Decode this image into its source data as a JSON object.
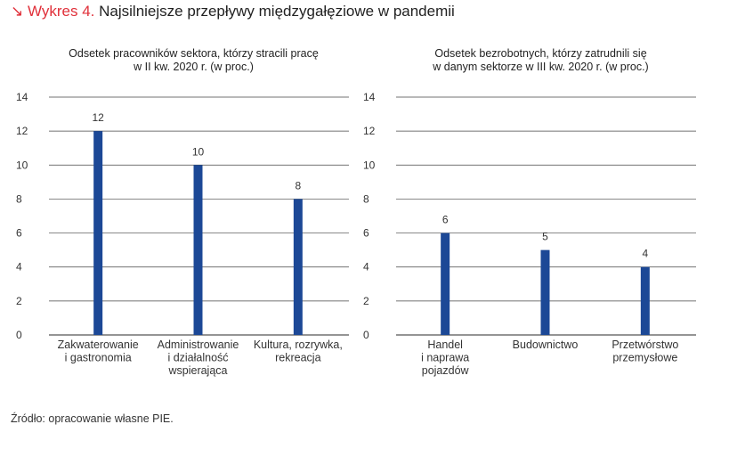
{
  "header": {
    "arrow": "↘",
    "number": "Wykres 4.",
    "title": "Najsilniejsze przepływy międzygałęziowe w pandemii"
  },
  "source": "Źródło: opracowanie własne PIE.",
  "colors": {
    "bar": "#1c4896",
    "grid": "#333333",
    "accent": "#e0303a"
  },
  "chart_data": [
    {
      "type": "bar",
      "title": [
        "Odsetek pracowników sektora, którzy stracili pracę",
        "w II kw. 2020 r. (w proc.)"
      ],
      "categories": [
        [
          "Zakwaterowanie",
          "i gastronomia"
        ],
        [
          "Administrowanie",
          "i działalność",
          "wspierająca"
        ],
        [
          "Kultura, rozrywka,",
          "rekreacja"
        ]
      ],
      "values": [
        12,
        10,
        8
      ],
      "ylim": [
        0,
        14
      ],
      "yticks": [
        0,
        2,
        4,
        6,
        8,
        10,
        12,
        14
      ],
      "grid": true
    },
    {
      "type": "bar",
      "title": [
        "Odsetek bezrobotnych, którzy zatrudnili się",
        "w danym sektorze w III kw. 2020 r. (w proc.)"
      ],
      "categories": [
        [
          "Handel",
          "i naprawa",
          "pojazdów"
        ],
        [
          "Budownictwo"
        ],
        [
          "Przetwórstwo",
          "przemysłowe"
        ]
      ],
      "values": [
        6,
        5,
        4
      ],
      "ylim": [
        0,
        14
      ],
      "yticks": [
        0,
        2,
        4,
        6,
        8,
        10,
        12,
        14
      ],
      "grid": true
    }
  ]
}
